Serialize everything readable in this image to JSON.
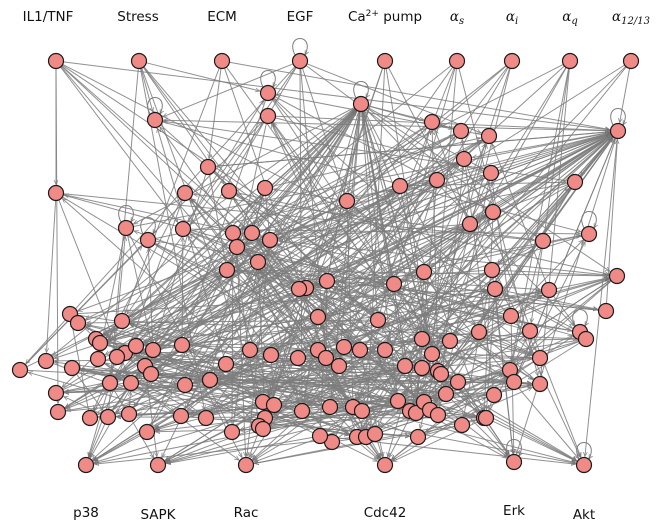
{
  "diagram": {
    "inputs": [
      {
        "key": "il1tnf",
        "text": "IL1/TNF"
      },
      {
        "key": "stress",
        "text": "Stress"
      },
      {
        "key": "ecm",
        "text": "ECM"
      },
      {
        "key": "egf",
        "text": "EGF"
      },
      {
        "key": "ca",
        "text": "Ca",
        "sup": "2+",
        "tail": " pump"
      },
      {
        "key": "as",
        "text": "α",
        "sub": "s",
        "math": true
      },
      {
        "key": "ai",
        "text": "α",
        "sub": "i",
        "math": true
      },
      {
        "key": "aq",
        "text": "α",
        "sub": "q",
        "math": true
      },
      {
        "key": "a1213",
        "text": "α",
        "sub": "12/13",
        "math": true
      }
    ],
    "outputs": [
      {
        "key": "p38",
        "text": "p38"
      },
      {
        "key": "sapk",
        "text": "SAPK"
      },
      {
        "key": "rac",
        "text": "Rac"
      },
      {
        "key": "cdc42",
        "text": "Cdc42"
      },
      {
        "key": "erk",
        "text": "Erk"
      },
      {
        "key": "akt",
        "text": "Akt"
      }
    ]
  }
}
